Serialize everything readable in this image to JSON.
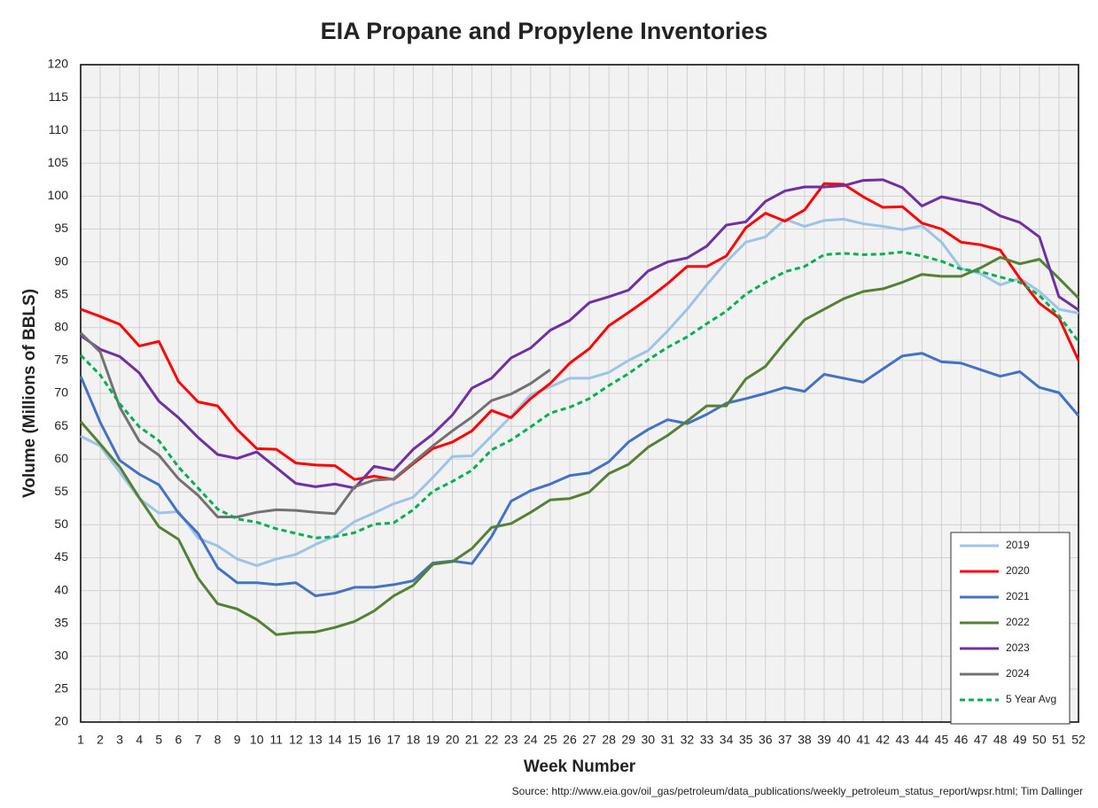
{
  "chart_data": {
    "type": "line",
    "title": "EIA Propane and Propylene Inventories",
    "x_label": "Week Number",
    "y_label": "Volume (Millions of BBLS)",
    "source": "Source: http://www.eia.gov/oil_gas/petroleum/data_publications/weekly_petroleum_status_report/wpsr.html; Tim Dallinger",
    "x": [
      1,
      2,
      3,
      4,
      5,
      6,
      7,
      8,
      9,
      10,
      11,
      12,
      13,
      14,
      15,
      16,
      17,
      18,
      19,
      20,
      21,
      22,
      23,
      24,
      25,
      26,
      27,
      28,
      29,
      30,
      31,
      32,
      33,
      34,
      35,
      36,
      37,
      38,
      39,
      40,
      41,
      42,
      43,
      44,
      45,
      46,
      47,
      48,
      49,
      50,
      51,
      52
    ],
    "xlim": [
      1,
      52
    ],
    "xticks": [
      1,
      2,
      3,
      4,
      5,
      6,
      7,
      8,
      9,
      10,
      11,
      12,
      13,
      14,
      15,
      16,
      17,
      18,
      19,
      20,
      21,
      22,
      23,
      24,
      25,
      26,
      27,
      28,
      29,
      30,
      31,
      32,
      33,
      34,
      35,
      36,
      37,
      38,
      39,
      40,
      41,
      42,
      43,
      44,
      45,
      46,
      47,
      48,
      49,
      50,
      51,
      52
    ],
    "ylim": [
      20,
      120
    ],
    "yticks": [
      20,
      25,
      30,
      35,
      40,
      45,
      50,
      55,
      60,
      65,
      70,
      75,
      80,
      85,
      90,
      95,
      100,
      105,
      110,
      115,
      120
    ],
    "grid": true,
    "legend": "bottom-right",
    "series": [
      {
        "name": "2019",
        "color": "#9dc3e6",
        "style": "solid",
        "values": [
          63.5,
          62,
          58,
          54,
          51.8,
          52,
          48,
          46.8,
          44.8,
          43.8,
          44.8,
          45.5,
          47,
          48.3,
          50.5,
          51.8,
          53.2,
          54.2,
          57.2,
          60.4,
          60.5,
          63.5,
          66.5,
          69.8,
          71,
          72.3,
          72.3,
          73.2,
          75,
          76.5,
          79.5,
          82.8,
          86.5,
          90,
          93,
          93.8,
          96.5,
          95.4,
          96.3,
          96.5,
          95.8,
          95.4,
          94.9,
          95.5,
          93,
          89,
          88.2,
          86.5,
          87.5,
          85.5,
          82.8,
          82.2
        ]
      },
      {
        "name": "2020",
        "color": "#ff0000",
        "style": "solid",
        "values": [
          82.8,
          81.7,
          80.5,
          77.2,
          77.9,
          71.8,
          68.7,
          68.1,
          64.5,
          61.6,
          61.5,
          59.4,
          59.1,
          59,
          56.9,
          57.4,
          56.9,
          59.3,
          61.6,
          62.6,
          64.3,
          67.4,
          66.3,
          69.2,
          71.5,
          74.6,
          76.8,
          80.3,
          82.3,
          84.4,
          86.7,
          89.3,
          89.3,
          90.9,
          95.2,
          97.4,
          96.2,
          97.9,
          101.9,
          101.8,
          99.9,
          98.3,
          98.4,
          95.9,
          95,
          93,
          92.6,
          91.8,
          87.5,
          83.7,
          81.5,
          75
        ]
      },
      {
        "name": "2021",
        "color": "#4472c4",
        "style": "solid",
        "values": [
          72.6,
          65.6,
          59.8,
          57.7,
          56.1,
          51.8,
          48.7,
          43.5,
          41.2,
          41.2,
          40.9,
          41.2,
          39.2,
          39.6,
          40.5,
          40.5,
          40.9,
          41.5,
          44.2,
          44.5,
          44.1,
          48.2,
          53.6,
          55.2,
          56.2,
          57.5,
          57.9,
          59.6,
          62.6,
          64.5,
          66,
          65.4,
          66.8,
          68.5,
          69.2,
          70,
          70.9,
          70.3,
          72.9,
          72.3,
          71.7,
          73.7,
          75.7,
          76.1,
          74.8,
          74.6,
          73.6,
          72.6,
          73.3,
          70.9,
          70.1,
          66.6
        ]
      },
      {
        "name": "2022",
        "color": "#548235",
        "style": "solid",
        "values": [
          65.7,
          62.3,
          58.8,
          54.1,
          49.7,
          47.8,
          41.9,
          38,
          37.2,
          35.6,
          33.3,
          33.6,
          33.7,
          34.4,
          35.3,
          36.9,
          39.2,
          40.8,
          44,
          44.4,
          46.4,
          49.6,
          50.2,
          51.9,
          53.8,
          54,
          55,
          57.8,
          59.2,
          61.8,
          63.6,
          65.8,
          68.1,
          68.1,
          72.2,
          74.1,
          77.8,
          81.2,
          82.8,
          84.4,
          85.5,
          85.9,
          86.9,
          88.1,
          87.8,
          87.8,
          89.1,
          90.7,
          89.7,
          90.4,
          87.5,
          84.5
        ]
      },
      {
        "name": "2023",
        "color": "#7030a0",
        "style": "solid",
        "values": [
          78.8,
          76.7,
          75.6,
          73.1,
          68.8,
          66.3,
          63.3,
          60.7,
          60.1,
          61.1,
          58.7,
          56.3,
          55.8,
          56.2,
          55.6,
          58.9,
          58.3,
          61.5,
          63.8,
          66.7,
          70.8,
          72.3,
          75.4,
          76.9,
          79.6,
          81.1,
          83.8,
          84.7,
          85.7,
          88.6,
          90,
          90.6,
          92.4,
          95.6,
          96.1,
          99.2,
          100.8,
          101.4,
          101.4,
          101.6,
          102.4,
          102.5,
          101.3,
          98.5,
          99.9,
          99.3,
          98.7,
          97,
          96,
          93.8,
          84.7,
          82.7
        ]
      },
      {
        "name": "2024",
        "color": "#767171",
        "style": "solid",
        "values": [
          79.2,
          76.3,
          67.9,
          62.7,
          60.6,
          57,
          54.5,
          51.2,
          51.2,
          51.9,
          52.3,
          52.2,
          51.9,
          51.7,
          55.8,
          56.8,
          57,
          59.5,
          62,
          64.3,
          66.4,
          68.9,
          69.9,
          71.5,
          73.6,
          null,
          null,
          null,
          null,
          null,
          null,
          null,
          null,
          null,
          null,
          null,
          null,
          null,
          null,
          null,
          null,
          null,
          null,
          null,
          null,
          null,
          null,
          null,
          null,
          null,
          null,
          null
        ]
      },
      {
        "name": "5 Year Avg",
        "color": "#00b050",
        "style": "dashed",
        "values": [
          75.8,
          72.8,
          68.4,
          64.9,
          62.8,
          58.8,
          55.6,
          52.4,
          50.9,
          50.4,
          49.4,
          48.7,
          48,
          48.2,
          48.8,
          50.1,
          50.3,
          52.3,
          55.1,
          56.6,
          58.3,
          61.4,
          62.9,
          64.9,
          67,
          67.9,
          69.2,
          71.2,
          73,
          75.1,
          77,
          78.6,
          80.6,
          82.5,
          85.1,
          86.9,
          88.5,
          89.3,
          91.1,
          91.3,
          91.1,
          91.2,
          91.5,
          90.9,
          90.1,
          88.9,
          88.5,
          87.7,
          86.9,
          84.9,
          81.8,
          77.9
        ]
      }
    ]
  }
}
